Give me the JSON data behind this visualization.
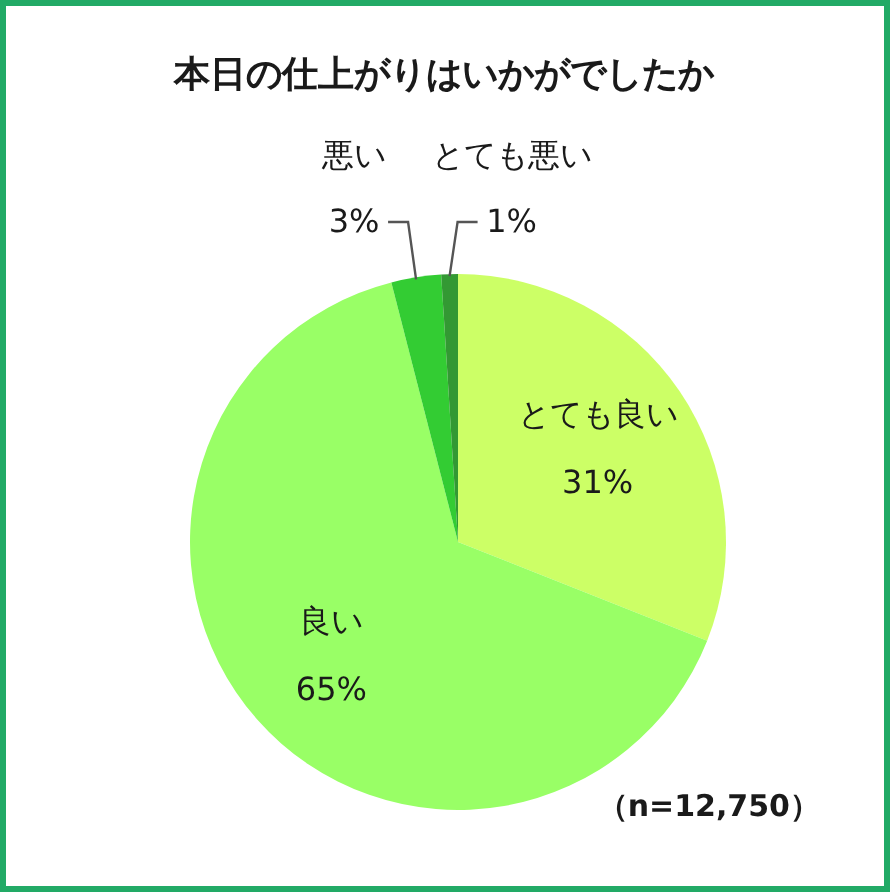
{
  "chart_data": {
    "type": "pie",
    "title": "本日の仕上がりはいかがでしたか",
    "categories": [
      "とても良い",
      "良い",
      "悪い",
      "とても悪い"
    ],
    "values": [
      31,
      65,
      3,
      1
    ],
    "value_labels": [
      "31%",
      "65%",
      "3%",
      "1%"
    ],
    "colors": [
      "#ccff66",
      "#99ff66",
      "#33cc33",
      "#339933"
    ],
    "annotations": [
      "（n=12,750）"
    ]
  }
}
